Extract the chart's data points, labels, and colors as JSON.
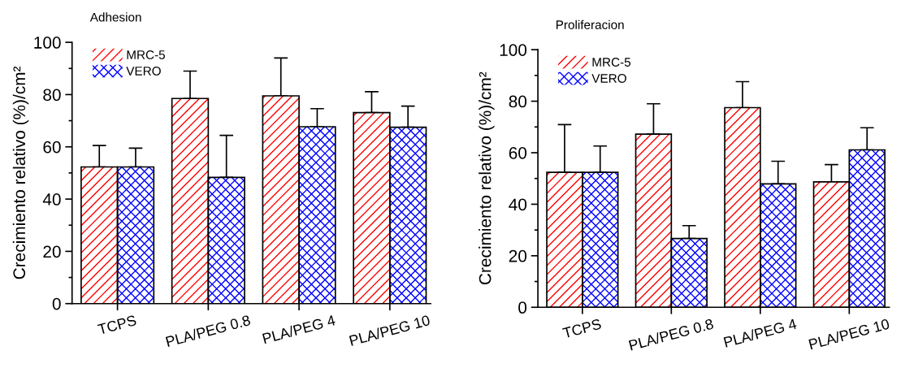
{
  "chart_data": [
    {
      "type": "bar",
      "title": "Adhesion",
      "ylabel": "Crecimiento relativo (%)/cm²",
      "categories": [
        "TCPS",
        "PLA/PEG 0.8",
        "PLA/PEG 4",
        "PLA/PEG 10"
      ],
      "series": [
        {
          "name": "MRC-5",
          "color": "#ff0000",
          "values": [
            52.3,
            78.5,
            79.5,
            73.1
          ],
          "errors": [
            [
              52.3,
              60.5
            ],
            [
              78.5,
              89.0
            ],
            [
              79.5,
              94.0
            ],
            [
              73.1,
              81.1
            ]
          ]
        },
        {
          "name": "VERO",
          "color": "#0000ff",
          "values": [
            52.3,
            48.3,
            67.7,
            67.5
          ],
          "errors": [
            [
              52.3,
              59.5
            ],
            [
              48.3,
              64.4
            ],
            [
              67.7,
              74.6
            ],
            [
              67.5,
              75.6
            ]
          ]
        }
      ],
      "ylim": [
        0,
        100
      ],
      "yticks": [
        0,
        {
          "value": 10,
          "label": null
        },
        20,
        {
          "value": 30,
          "label": null
        },
        40,
        {
          "value": 50,
          "label": null
        },
        60,
        {
          "value": 70,
          "label": null
        },
        80,
        {
          "value": 90,
          "label": null
        },
        100
      ],
      "grid": false,
      "legend": "top left"
    },
    {
      "type": "bar",
      "title": "Proliferacion",
      "ylabel": "Crecimiento relativo (%)/cm²",
      "categories": [
        "TCPS",
        "PLA/PEG 0.8",
        "PLA/PEG 4",
        "PLA/PEG 10"
      ],
      "series": [
        {
          "name": "MRC-5",
          "color": "#ff0000",
          "values": [
            52.4,
            67.2,
            77.5,
            48.7
          ],
          "errors": [
            [
              52.4,
              70.9
            ],
            [
              67.2,
              79.0
            ],
            [
              77.5,
              87.6
            ],
            [
              48.7,
              55.4
            ]
          ]
        },
        {
          "name": "VERO",
          "color": "#0000ff",
          "values": [
            52.4,
            26.7,
            47.9,
            61.1
          ],
          "errors": [
            [
              52.4,
              62.6
            ],
            [
              26.7,
              31.7
            ],
            [
              47.9,
              56.7
            ],
            [
              61.1,
              69.7
            ]
          ]
        }
      ],
      "ylim": [
        0,
        100
      ],
      "yticks": [
        0,
        {
          "value": 10,
          "label": null
        },
        20,
        {
          "value": 30,
          "label": null
        },
        40,
        {
          "value": 50,
          "label": null
        },
        60,
        {
          "value": 70,
          "label": null
        },
        80,
        {
          "value": 90,
          "label": null
        },
        100
      ],
      "grid": false,
      "legend": "top left"
    }
  ]
}
